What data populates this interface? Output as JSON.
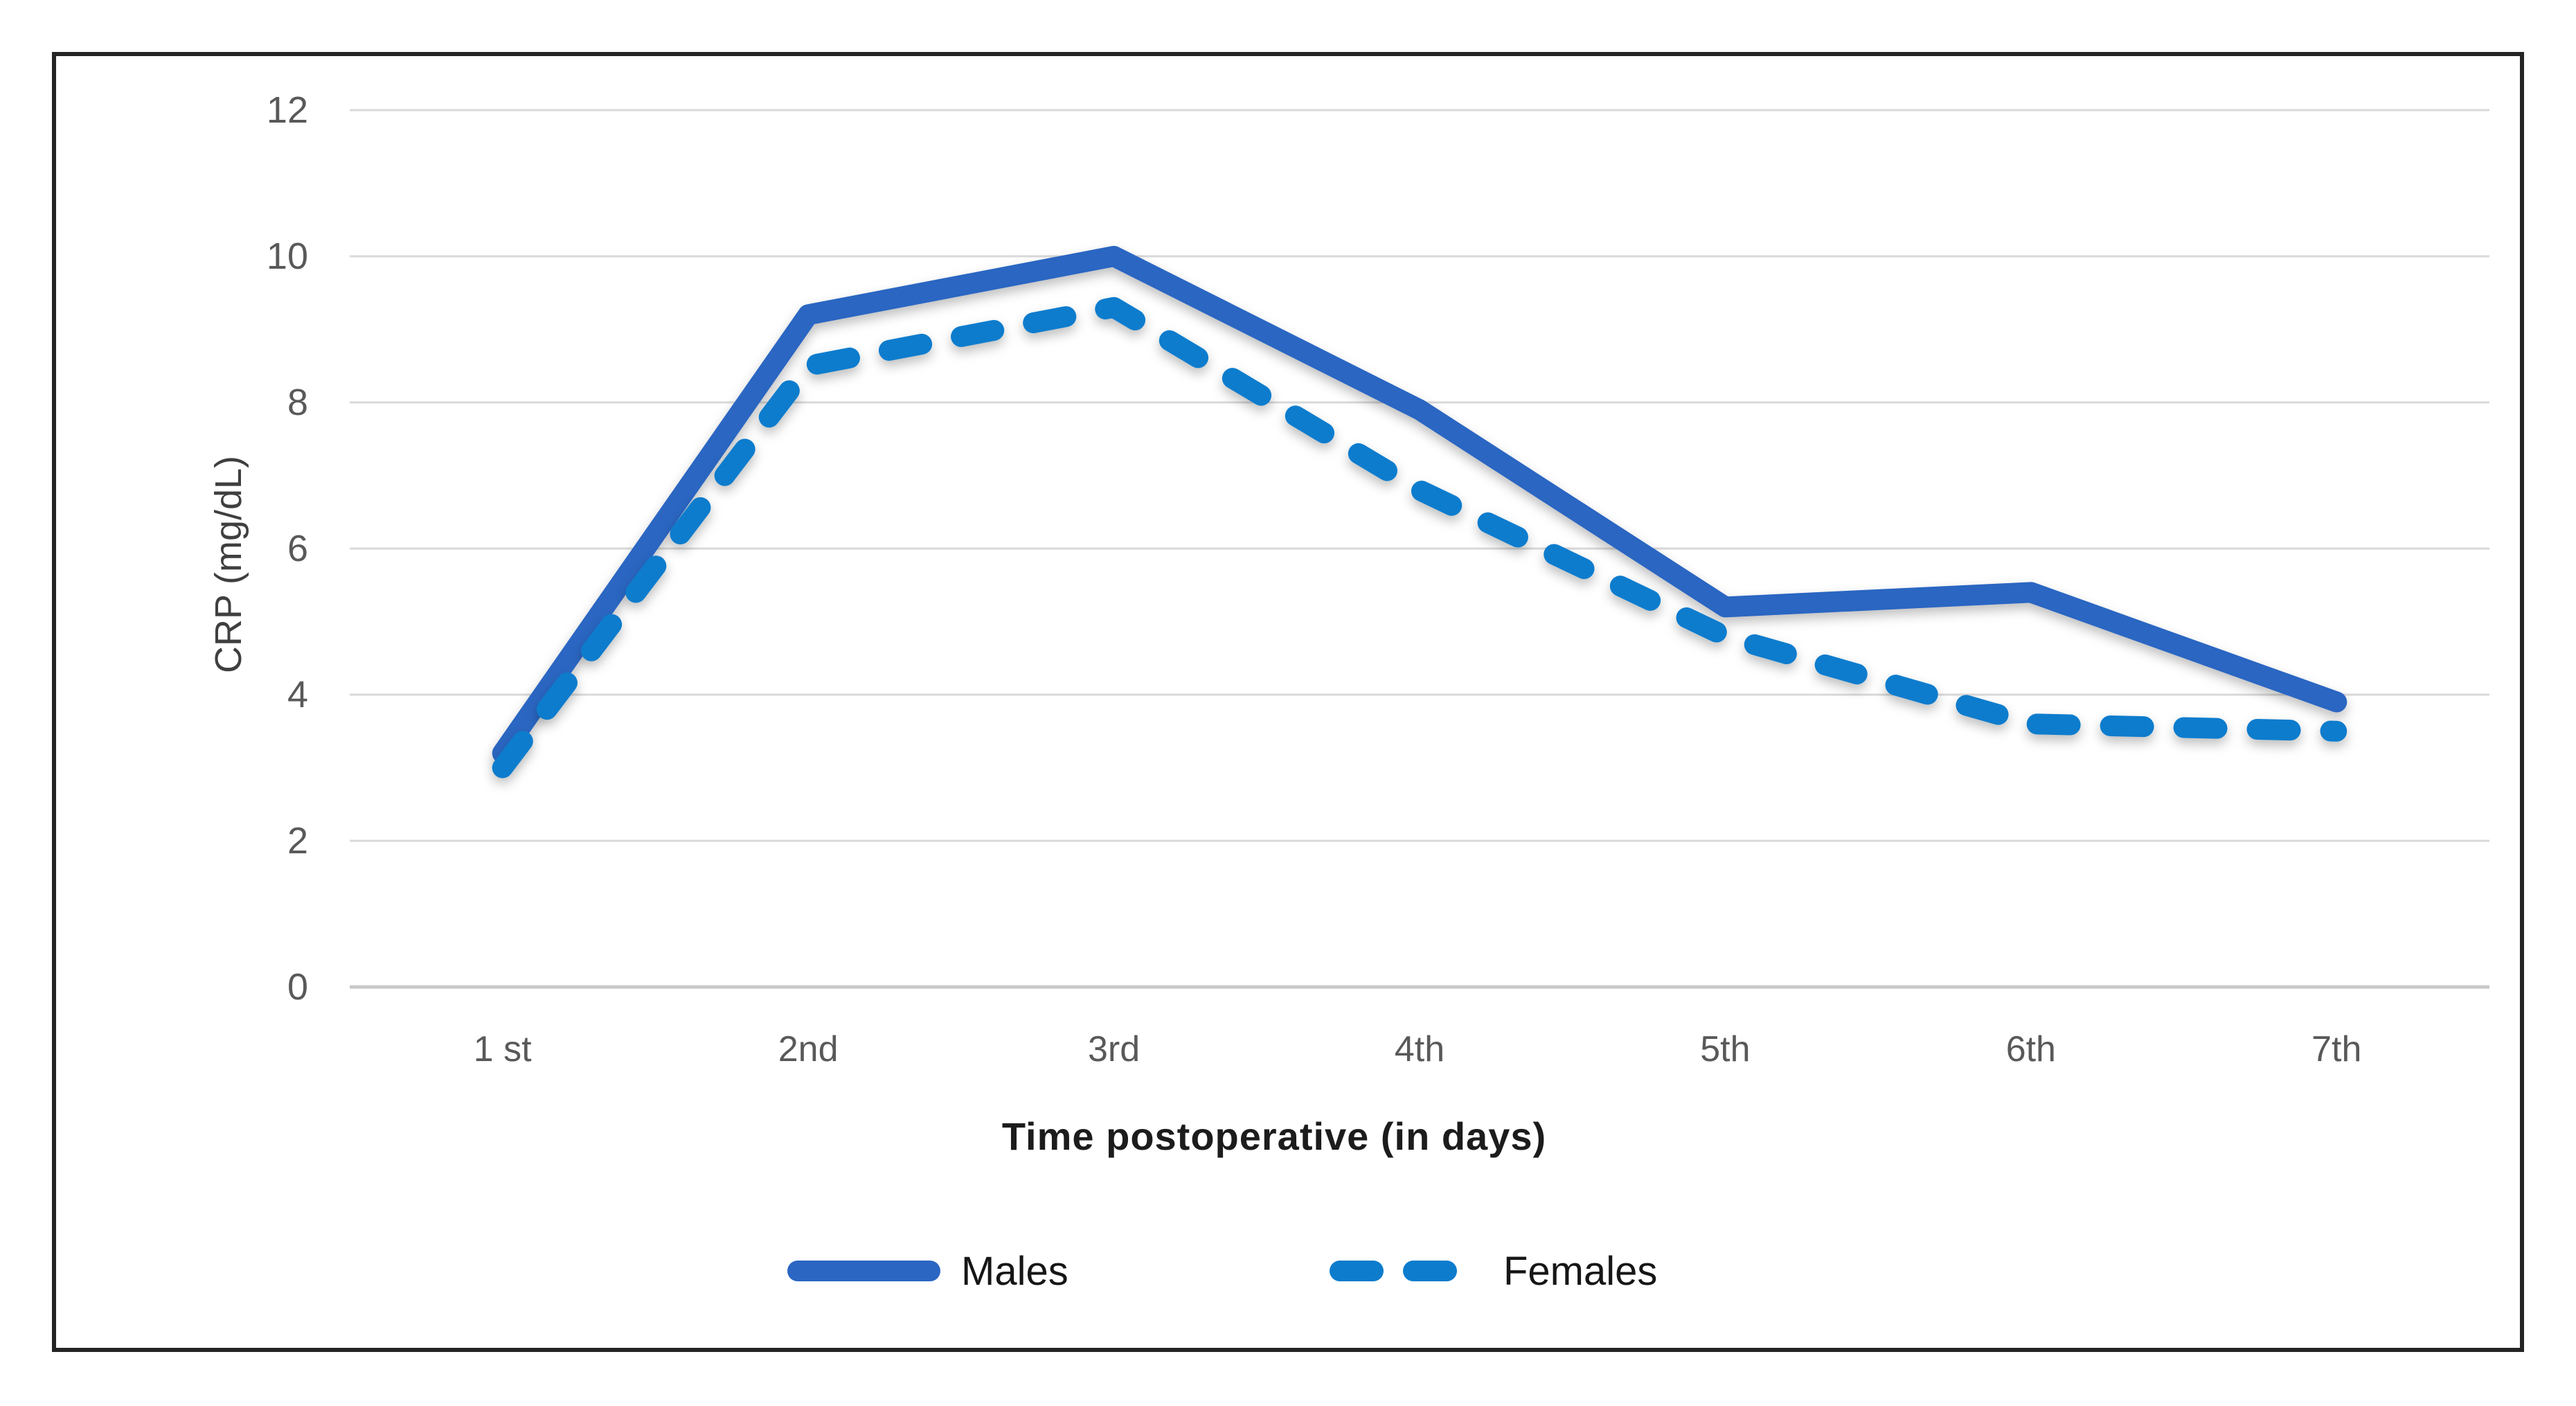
{
  "chart_data": {
    "type": "line",
    "title": "",
    "categories": [
      "1 st",
      "2nd",
      "3rd",
      "4th",
      "5th",
      "6th",
      "7th"
    ],
    "series": [
      {
        "name": "Males",
        "style": "solid",
        "color": "#2b66c2",
        "values": [
          3.2,
          9.2,
          10.0,
          7.9,
          5.2,
          5.4,
          3.9
        ]
      },
      {
        "name": "Females",
        "style": "dashed",
        "color": "#0d7ccd",
        "values": [
          3.0,
          8.5,
          9.3,
          6.8,
          4.8,
          3.6,
          3.5
        ]
      }
    ],
    "xlabel": "Time postoperative (in days)",
    "ylabel": "CRP (mg/dL)",
    "ylim": [
      0,
      12
    ],
    "yticks": [
      12,
      10,
      8,
      6,
      4,
      2,
      0
    ],
    "grid": true,
    "gridline_color": "#d9d9d9",
    "zero_line_color": "#c9c9c9",
    "legend_position": "bottom",
    "tick_color": "#595959",
    "border_color": "#242424"
  }
}
